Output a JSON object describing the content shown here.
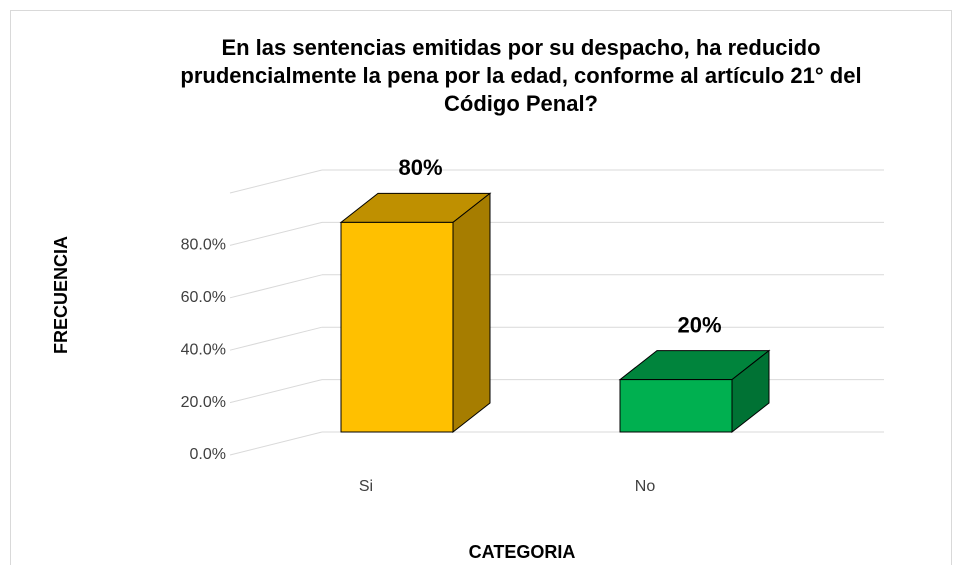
{
  "chart_data": {
    "type": "bar3d",
    "title": "En las sentencias emitidas por su despacho, ha reducido prudencialmente la pena por la edad, conforme al artículo 21° del Código Penal?",
    "x_label": "CATEGORIA",
    "y_label": "FRECUENCIA",
    "categories": [
      "Si",
      "No"
    ],
    "values": [
      80,
      20
    ],
    "value_labels": [
      "80%",
      "20%"
    ],
    "colors": [
      "#ffc000",
      "#00b050"
    ],
    "ylim": [
      0,
      100
    ],
    "yticks": [
      {
        "value": 0,
        "label": "0.0%"
      },
      {
        "value": 20,
        "label": "20.0%"
      },
      {
        "value": 40,
        "label": "40.0%"
      },
      {
        "value": 60,
        "label": "60.0%"
      },
      {
        "value": 80,
        "label": "80.0%"
      }
    ],
    "grid": true
  }
}
